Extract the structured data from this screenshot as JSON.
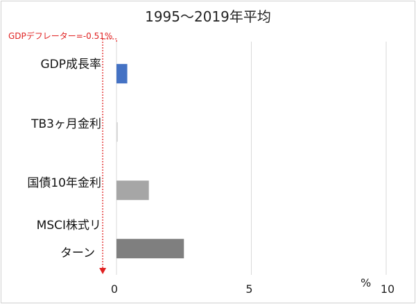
{
  "chart_data": {
    "type": "bar",
    "orientation": "horizontal",
    "title": "1995〜2019年平均",
    "categories": [
      "GDP成長率",
      "TB3ヶ月金利",
      "国債10年金利",
      "MSCI株式リターン"
    ],
    "category_lines": [
      [
        "GDP成長率"
      ],
      [
        "TB3ヶ月金利"
      ],
      [
        "国債10年金利"
      ],
      [
        "MSCI株式リ",
        "ターン"
      ]
    ],
    "values": [
      0.4,
      0.05,
      1.2,
      2.5
    ],
    "bar_colors": [
      "#4472c4",
      "#d9d9d9",
      "#a6a6a6",
      "#7f7f7f"
    ],
    "xlim": [
      0,
      10
    ],
    "x_ticks": [
      0,
      5,
      10
    ],
    "unit_label": "%",
    "grid": "vertical",
    "annotation": {
      "text": "GDPデフレーター=-0.51%",
      "value": -0.51,
      "color": "#e02020"
    }
  }
}
